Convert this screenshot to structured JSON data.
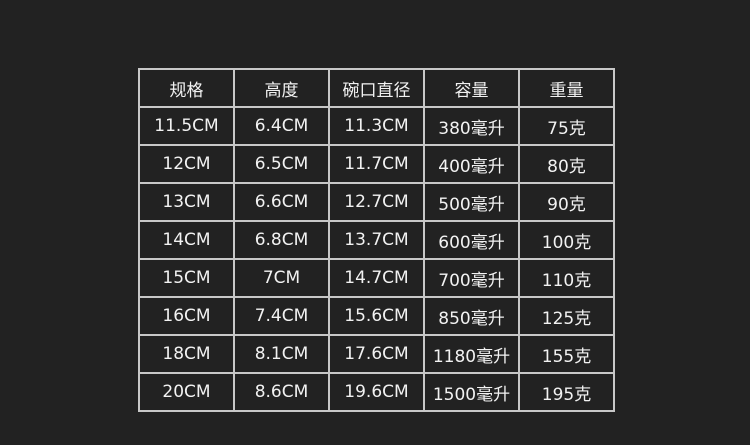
{
  "table": {
    "headers": [
      "规格",
      "高度",
      "碗口直径",
      "容量",
      "重量"
    ],
    "rows": [
      [
        "11.5CM",
        "6.4CM",
        "11.3CM",
        "380毫升",
        "75克"
      ],
      [
        "12CM",
        "6.5CM",
        "11.7CM",
        "400毫升",
        "80克"
      ],
      [
        "13CM",
        "6.6CM",
        "12.7CM",
        "500毫升",
        "90克"
      ],
      [
        "14CM",
        "6.8CM",
        "13.7CM",
        "600毫升",
        "100克"
      ],
      [
        "15CM",
        "7CM",
        "14.7CM",
        "700毫升",
        "110克"
      ],
      [
        "16CM",
        "7.4CM",
        "15.6CM",
        "850毫升",
        "125克"
      ],
      [
        "18CM",
        "8.1CM",
        "17.6CM",
        "1180毫升",
        "155克"
      ],
      [
        "20CM",
        "8.6CM",
        "19.6CM",
        "1500毫升",
        "195克"
      ]
    ]
  }
}
